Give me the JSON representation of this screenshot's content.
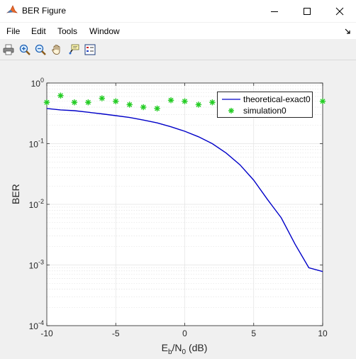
{
  "window": {
    "title": "BER Figure",
    "app_icon": "matlab-icon",
    "controls": [
      "minimize-icon",
      "maximize-icon",
      "close-icon"
    ]
  },
  "menu": {
    "items": [
      "File",
      "Edit",
      "Tools",
      "Window"
    ],
    "dock_icon": "dock-arrow-icon"
  },
  "toolbar": {
    "tools": [
      "print-icon",
      "zoom-in-icon",
      "zoom-out-icon",
      "pan-hand-icon",
      "data-cursor-icon",
      "legend-icon"
    ]
  },
  "chart_data": {
    "type": "line",
    "xlabel": {
      "base": "E",
      "sub1": "b",
      "mid": "/N",
      "sub2": "0",
      "suffix": " (dB)"
    },
    "ylabel": "BER",
    "xlim": [
      -10,
      10
    ],
    "ylim": [
      0.0001,
      1
    ],
    "yscale": "log",
    "grid": true,
    "minor_grid": true,
    "xticks": [
      -10,
      -5,
      0,
      5,
      10
    ],
    "xtick_labels": [
      "-10",
      "-5",
      "0",
      "5",
      "10"
    ],
    "yticks": [
      0.0001,
      0.001,
      0.01,
      0.1,
      1
    ],
    "ytick_labels": [
      {
        "base": "10",
        "exp": "-4"
      },
      {
        "base": "10",
        "exp": "-3"
      },
      {
        "base": "10",
        "exp": "-2"
      },
      {
        "base": "10",
        "exp": "-1"
      },
      {
        "base": "10",
        "exp": "0"
      }
    ],
    "legend_placement": "top-right",
    "series": [
      {
        "name": "theoretical-exact0",
        "style": "line",
        "color": "#0000c8",
        "x": [
          -10,
          -9,
          -8,
          -7,
          -6,
          -5,
          -4,
          -3,
          -2,
          -1,
          0,
          1,
          2,
          3,
          4,
          5,
          6,
          7,
          8,
          9,
          10
        ],
        "y": [
          0.38,
          0.36,
          0.35,
          0.33,
          0.31,
          0.29,
          0.27,
          0.245,
          0.22,
          0.19,
          0.16,
          0.13,
          0.1,
          0.07,
          0.045,
          0.025,
          0.012,
          0.006,
          0.0022,
          0.0009,
          0.00078
        ]
      },
      {
        "name": "simulation0",
        "style": "marker",
        "marker": "asterisk",
        "color": "#22cc22",
        "x": [
          -10,
          -9,
          -8,
          -7,
          -6,
          -5,
          -4,
          -3,
          -2,
          -1,
          0,
          1,
          2,
          3,
          4,
          5,
          6,
          7,
          8,
          9,
          10
        ],
        "y": [
          0.48,
          0.62,
          0.48,
          0.48,
          0.56,
          0.5,
          0.44,
          0.4,
          0.38,
          0.52,
          0.5,
          0.44,
          0.48,
          0.48,
          0.5,
          0.5,
          0.5,
          0.5,
          0.5,
          0.5,
          0.5
        ]
      }
    ]
  }
}
